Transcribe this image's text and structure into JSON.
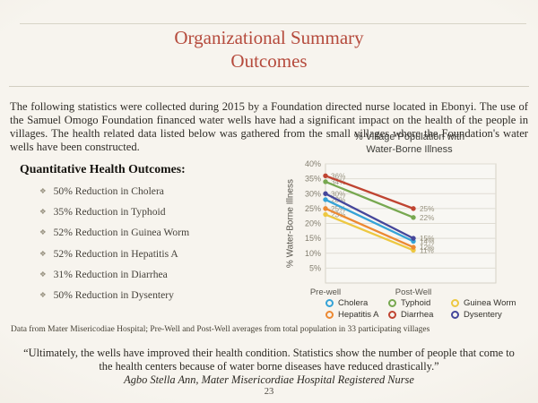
{
  "slide": {
    "title_line1": "Organizational Summary",
    "title_line2": "Outcomes",
    "intro": "The following statistics were collected during 2015 by a Foundation directed nurse located in Ebonyi.   The use of the Samuel Omogo Foundation financed water wells have had a significant impact on the health of the people in villages.  The health related data listed below was gathered from the small villages where the Foundation's water wells have been constructed.",
    "outcomes_heading": "Quantitative Health Outcomes:",
    "bullet_glyph": "❖",
    "outcomes": [
      "50% Reduction in Cholera",
      "35% Reduction in Typhoid",
      "52% Reduction in Guinea Worm",
      "52% Reduction in Hepatitis A",
      "31% Reduction in Diarrhea",
      "50% Reduction in Dysentery"
    ],
    "source_note": "Data from Mater Misericodiae Hospital; Pre-Well and Post-Well averages from total population in 33 participating villages",
    "quote_line1": "“Ultimately, the wells have improved their health condition.  Statistics show the number of people that come to",
    "quote_line2": "the health centers because of water borne diseases have reduced drastically.”",
    "quote_attribution": "Agbo Stella Ann, Mater Misericordiae Hospital Registered Nurse",
    "page_number": "23"
  },
  "chart_data": {
    "type": "line",
    "title": "% Village Population with Water-Borne Illness",
    "title_lines": [
      "% Village Population with",
      "Water-Borne Illness"
    ],
    "ylabel": "% Water-Borne Illness",
    "categories": [
      "Pre-well",
      "Post-Well"
    ],
    "series": [
      {
        "name": "Cholera",
        "color": "#35a3d7",
        "values": [
          28,
          14
        ]
      },
      {
        "name": "Typhoid",
        "color": "#77a850",
        "values": [
          34,
          22
        ]
      },
      {
        "name": "Guinea Worm",
        "color": "#edc841",
        "values": [
          23,
          11
        ]
      },
      {
        "name": "Hepatitis A",
        "color": "#ec8933",
        "values": [
          25,
          12
        ]
      },
      {
        "name": "Diarrhea",
        "color": "#bf4431",
        "values": [
          36,
          25
        ]
      },
      {
        "name": "Dysentery",
        "color": "#45479b",
        "values": [
          30,
          15
        ]
      }
    ],
    "ylim": [
      0,
      40
    ],
    "ytick_step": 5,
    "data_label_suffix": "%",
    "grid": true,
    "legend_position": "bottom"
  }
}
